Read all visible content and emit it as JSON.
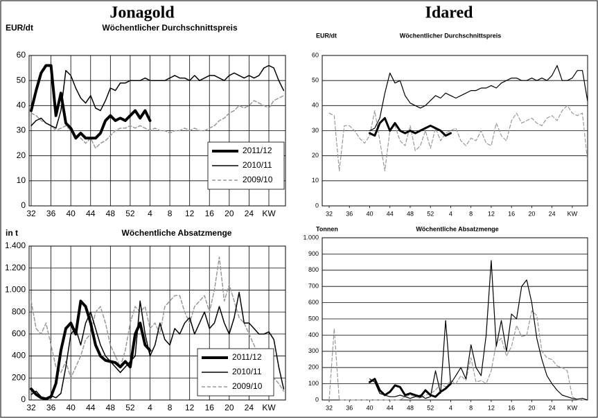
{
  "headings": [
    "Jonagold",
    "Idared"
  ],
  "chart_data": [
    {
      "type": "line",
      "title": "Wöchentlicher Durchschnittspreis",
      "y_label": "EUR/dt",
      "categories": [
        "32",
        null,
        null,
        null,
        "36",
        null,
        null,
        null,
        "40",
        null,
        null,
        null,
        "44",
        null,
        null,
        null,
        "48",
        null,
        null,
        null,
        "52",
        null,
        null,
        null,
        "4",
        null,
        null,
        null,
        "8",
        null,
        null,
        null,
        "12",
        null,
        null,
        null,
        "16",
        null,
        null,
        null,
        "20",
        null,
        null,
        null,
        "24",
        null,
        null,
        null,
        "KW",
        null,
        null,
        null
      ],
      "ylim": [
        0,
        60
      ],
      "yticks": [
        0,
        10,
        20,
        30,
        40,
        50,
        60
      ],
      "xgrid": true,
      "ygrid": true,
      "legend": "lower right",
      "series": [
        {
          "name": "2011/12",
          "color": "#000000",
          "width": 4,
          "dash": false,
          "values": [
            38,
            46,
            53,
            56,
            56,
            36,
            45,
            33,
            31,
            27,
            29,
            27,
            27,
            27,
            29,
            34,
            36,
            34,
            35,
            34,
            36,
            38,
            35,
            38,
            34,
            null,
            null,
            null,
            null,
            null,
            null,
            null,
            null,
            null,
            null,
            null,
            null,
            null,
            null,
            null,
            null,
            null,
            null,
            null,
            null,
            null,
            null,
            null,
            null,
            null,
            null,
            null
          ]
        },
        {
          "name": "2010/11",
          "color": "#000000",
          "width": 1.5,
          "dash": false,
          "values": [
            32,
            34,
            35,
            33,
            32,
            31,
            38,
            54,
            52,
            47,
            43,
            41,
            44,
            39,
            38,
            42,
            47,
            46,
            49,
            49,
            50,
            50,
            50,
            51,
            50,
            50,
            50,
            50,
            51,
            52,
            51,
            51,
            50,
            52,
            50,
            51,
            52,
            52,
            51,
            50,
            52,
            53,
            52,
            51,
            52,
            51,
            52,
            55,
            56,
            55,
            50,
            46
          ]
        },
        {
          "name": "2009/10",
          "color": "#999999",
          "width": 1.5,
          "dash": true,
          "values": [
            37,
            36,
            34,
            33,
            32,
            30,
            31,
            32,
            30,
            28,
            27,
            25,
            27,
            23,
            25,
            26,
            28,
            30,
            31,
            31,
            32,
            31,
            32,
            31,
            30,
            31,
            30,
            30,
            29,
            30,
            30,
            31,
            30,
            31,
            30,
            30,
            31,
            32,
            34,
            35,
            37,
            38,
            40,
            39,
            40,
            42,
            41,
            40,
            39,
            42,
            43,
            44
          ]
        }
      ]
    },
    {
      "type": "line",
      "title": "Wöchentlicher Durchschnittspreis",
      "y_label": "EUR/dt",
      "categories": [
        "32",
        null,
        null,
        null,
        "36",
        null,
        null,
        null,
        "40",
        null,
        null,
        null,
        "44",
        null,
        null,
        null,
        "48",
        null,
        null,
        null,
        "52",
        null,
        null,
        null,
        "4",
        null,
        null,
        null,
        "8",
        null,
        null,
        null,
        "12",
        null,
        null,
        null,
        "16",
        null,
        null,
        null,
        "20",
        null,
        null,
        null,
        "24",
        null,
        null,
        null,
        "KW",
        null,
        null,
        null
      ],
      "ylim": [
        0,
        60
      ],
      "yticks": [
        0,
        10,
        20,
        30,
        40,
        50,
        60
      ],
      "xgrid": false,
      "ygrid": true,
      "legend": null,
      "series": [
        {
          "name": "2011/12",
          "color": "#000000",
          "width": 3,
          "dash": false,
          "values": [
            null,
            null,
            null,
            null,
            null,
            null,
            null,
            null,
            29,
            28,
            33,
            35,
            30,
            33,
            30,
            29,
            30,
            29,
            30,
            31,
            32,
            31,
            30,
            28,
            29,
            null,
            null,
            null,
            null,
            null,
            null,
            null,
            null,
            null,
            null,
            null,
            null,
            null,
            null,
            null,
            null,
            null,
            null,
            null,
            null,
            null,
            null,
            null,
            null,
            null,
            null,
            null
          ]
        },
        {
          "name": "2010/11",
          "color": "#000000",
          "width": 1.2,
          "dash": false,
          "values": [
            null,
            null,
            null,
            null,
            null,
            null,
            null,
            null,
            30,
            31,
            35,
            45,
            53,
            49,
            50,
            44,
            41,
            40,
            39,
            40,
            42,
            44,
            43,
            45,
            44,
            43,
            44,
            45,
            46,
            46,
            47,
            47,
            48,
            47,
            49,
            50,
            51,
            51,
            50,
            50,
            51,
            50,
            51,
            50,
            52,
            56,
            50,
            50,
            51,
            54,
            54,
            42
          ]
        },
        {
          "name": "2009/10",
          "color": "#999999",
          "width": 1.2,
          "dash": true,
          "values": [
            37,
            36,
            14,
            32,
            32,
            30,
            27,
            25,
            28,
            38,
            26,
            14,
            30,
            32,
            26,
            24,
            32,
            22,
            24,
            30,
            23,
            31,
            26,
            29,
            30,
            31,
            26,
            24,
            27,
            26,
            30,
            25,
            24,
            33,
            28,
            26,
            34,
            37,
            33,
            34,
            35,
            33,
            32,
            35,
            36,
            34,
            38,
            40,
            37,
            36,
            37,
            18
          ]
        }
      ]
    },
    {
      "type": "line",
      "title": "Wöchentliche Absatzmenge",
      "y_label": "in t",
      "categories": [
        "32",
        null,
        null,
        null,
        "36",
        null,
        null,
        null,
        "40",
        null,
        null,
        null,
        "44",
        null,
        null,
        null,
        "48",
        null,
        null,
        null,
        "52",
        null,
        null,
        null,
        "4",
        null,
        null,
        null,
        "8",
        null,
        null,
        null,
        "12",
        null,
        null,
        null,
        "16",
        null,
        null,
        null,
        "20",
        null,
        null,
        null,
        "24",
        null,
        null,
        null,
        "KW",
        null,
        null,
        null
      ],
      "ylim": [
        0,
        1400
      ],
      "yticks": [
        0,
        200,
        400,
        600,
        800,
        {
          "value": 1000,
          "label": "1.000"
        },
        {
          "value": 1200,
          "label": "1.200"
        },
        {
          "value": 1400,
          "label": "1.400"
        }
      ],
      "xgrid": true,
      "ygrid": true,
      "legend": "lower right",
      "series": [
        {
          "name": "2011/12",
          "color": "#000000",
          "width": 4,
          "dash": false,
          "values": [
            100,
            50,
            20,
            10,
            30,
            150,
            450,
            650,
            700,
            600,
            900,
            850,
            700,
            500,
            400,
            360,
            350,
            340,
            300,
            350,
            300,
            600,
            700,
            500,
            450,
            null,
            null,
            null,
            null,
            null,
            null,
            null,
            null,
            null,
            null,
            null,
            null,
            null,
            null,
            null,
            null,
            null,
            null,
            null,
            null,
            null,
            null,
            null,
            null,
            null,
            null,
            null
          ]
        },
        {
          "name": "2010/11",
          "color": "#000000",
          "width": 1.5,
          "dash": false,
          "values": [
            50,
            80,
            30,
            10,
            40,
            20,
            60,
            300,
            600,
            650,
            500,
            700,
            800,
            650,
            500,
            400,
            350,
            300,
            250,
            300,
            350,
            400,
            900,
            600,
            400,
            500,
            700,
            550,
            500,
            650,
            600,
            700,
            750,
            600,
            700,
            800,
            650,
            700,
            850,
            700,
            600,
            750,
            980,
            700,
            700,
            650,
            600,
            600,
            620,
            550,
            300,
            100
          ]
        },
        {
          "name": "2009/10",
          "color": "#999999",
          "width": 1.5,
          "dash": true,
          "values": [
            900,
            650,
            600,
            700,
            500,
            300,
            250,
            350,
            200,
            300,
            400,
            550,
            600,
            800,
            850,
            700,
            500,
            400,
            300,
            450,
            700,
            850,
            800,
            850,
            650,
            700,
            600,
            850,
            900,
            950,
            950,
            800,
            700,
            850,
            900,
            950,
            800,
            1000,
            1300,
            900,
            1050,
            900,
            750,
            700,
            600,
            500,
            400,
            350,
            300,
            200,
            150,
            80
          ]
        }
      ]
    },
    {
      "type": "line",
      "title": "Wöchentliche Absatzmenge",
      "y_label": "Tonnen",
      "categories": [
        "32",
        null,
        null,
        null,
        "36",
        null,
        null,
        null,
        "40",
        null,
        null,
        null,
        "44",
        null,
        null,
        null,
        "48",
        null,
        null,
        null,
        "52",
        null,
        null,
        null,
        "4",
        null,
        null,
        null,
        "8",
        null,
        null,
        null,
        "12",
        null,
        null,
        null,
        "16",
        null,
        null,
        null,
        "20",
        null,
        null,
        null,
        "24",
        null,
        null,
        null,
        "KW",
        null,
        null,
        null
      ],
      "ylim": [
        0,
        1000
      ],
      "yticks": [
        0,
        100,
        200,
        300,
        400,
        500,
        600,
        700,
        800,
        900,
        {
          "value": 1000,
          "label": "1.000"
        }
      ],
      "xgrid": false,
      "ygrid": true,
      "legend": null,
      "series": [
        {
          "name": "2011/12",
          "color": "#000000",
          "width": 3,
          "dash": false,
          "values": [
            null,
            null,
            null,
            null,
            null,
            null,
            null,
            null,
            110,
            130,
            60,
            30,
            50,
            90,
            80,
            30,
            40,
            30,
            20,
            60,
            30,
            20,
            50,
            70,
            100,
            null,
            null,
            null,
            null,
            null,
            null,
            null,
            null,
            null,
            null,
            null,
            null,
            null,
            null,
            null,
            null,
            null,
            null,
            null,
            null,
            null,
            null,
            null,
            null,
            null,
            null,
            null
          ]
        },
        {
          "name": "2010/11",
          "color": "#000000",
          "width": 1.2,
          "dash": false,
          "values": [
            null,
            null,
            null,
            null,
            null,
            null,
            null,
            null,
            130,
            110,
            40,
            30,
            20,
            20,
            30,
            20,
            10,
            20,
            30,
            10,
            20,
            180,
            40,
            490,
            100,
            150,
            200,
            130,
            340,
            200,
            150,
            400,
            860,
            330,
            490,
            300,
            530,
            500,
            700,
            740,
            600,
            380,
            250,
            150,
            100,
            60,
            30,
            20,
            10,
            5,
            10,
            0
          ]
        },
        {
          "name": "2009/10",
          "color": "#999999",
          "width": 1.2,
          "dash": true,
          "values": [
            0,
            440,
            0,
            0,
            0,
            0,
            0,
            0,
            0,
            0,
            0,
            0,
            0,
            0,
            0,
            20,
            30,
            20,
            10,
            30,
            40,
            60,
            100,
            80,
            120,
            100,
            150,
            120,
            260,
            110,
            120,
            100,
            180,
            350,
            380,
            270,
            330,
            460,
            390,
            400,
            550,
            520,
            300,
            260,
            250,
            210,
            200,
            180,
            20,
            0,
            0,
            0
          ]
        }
      ]
    }
  ]
}
